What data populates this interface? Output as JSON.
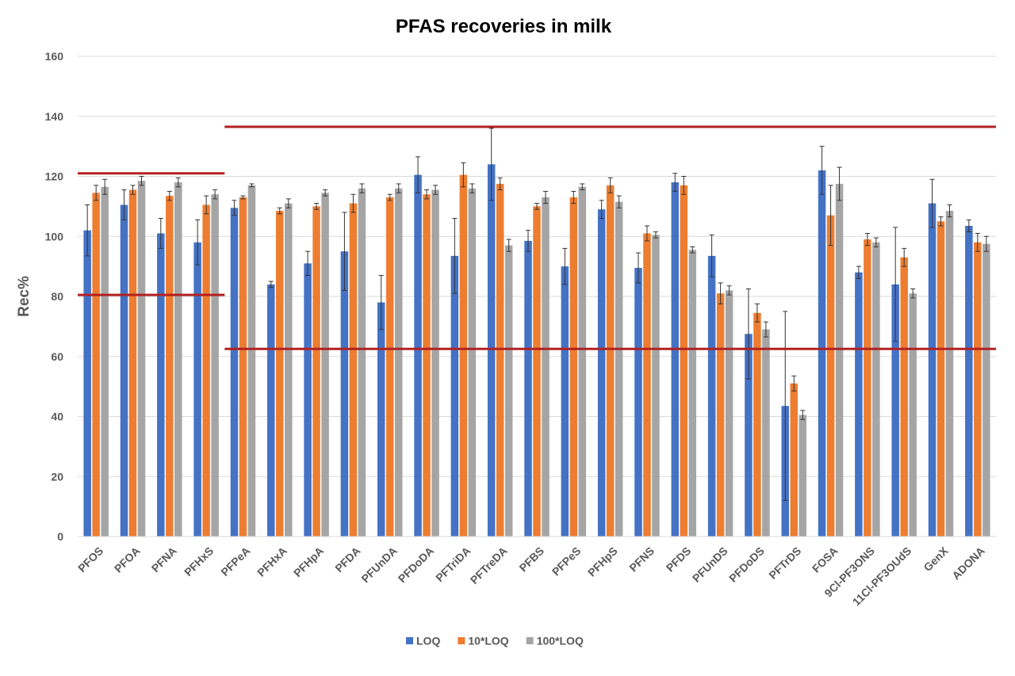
{
  "chart_data": {
    "type": "bar",
    "title": "PFAS recoveries in milk",
    "xlabel": "",
    "ylabel": "Rec%",
    "ylim": [
      0,
      160
    ],
    "yticks": [
      0,
      20,
      40,
      60,
      80,
      100,
      120,
      140,
      160
    ],
    "grid": true,
    "legend_position": "bottom",
    "categories": [
      "PFOS",
      "PFOA",
      "PFNA",
      "PFHxS",
      "PFPeA",
      "PFHxA",
      "PFHpA",
      "PFDA",
      "PFUnDA",
      "PFDoDA",
      "PFTriDA",
      "PFTreDA",
      "PFBS",
      "PFPeS",
      "PFHpS",
      "PFNS",
      "PFDS",
      "PFUnDS",
      "PFDoDS",
      "PFTrDS",
      "FOSA",
      "9Cl-PF3ONS",
      "11Cl-PF3OUdS",
      "GenX",
      "ADONA"
    ],
    "series": [
      {
        "name": "LOQ",
        "color": "#4472C4",
        "values": [
          102,
          110.5,
          101,
          98,
          109.5,
          84,
          91,
          95,
          78,
          120.5,
          93.5,
          124,
          98.5,
          90,
          109,
          89.5,
          118,
          93.5,
          67.5,
          43.5,
          122,
          88,
          84,
          111,
          103.5
        ],
        "errors": [
          8.5,
          5,
          5,
          7.5,
          2.5,
          1,
          4,
          13,
          9,
          6,
          12.5,
          12,
          3.5,
          6,
          3,
          5,
          3,
          7,
          15,
          31.5,
          8,
          2,
          19,
          8,
          2
        ]
      },
      {
        "name": "10*LOQ",
        "color": "#ED7D31",
        "values": [
          114.5,
          115.5,
          113.5,
          110.5,
          113,
          108.5,
          110,
          111,
          113,
          114,
          120.5,
          117.5,
          110,
          113,
          117,
          101,
          117,
          81,
          74.5,
          51,
          107,
          99,
          93,
          105,
          98
        ],
        "errors": [
          2.5,
          1.5,
          1.5,
          3,
          0.5,
          1,
          1,
          3,
          1,
          1.5,
          4,
          2,
          1,
          2,
          2.5,
          2.5,
          3,
          3.5,
          3,
          2.5,
          10,
          2,
          3,
          1.5,
          3
        ]
      },
      {
        "name": "100*LOQ",
        "color": "#A5A5A5",
        "values": [
          116.5,
          118.5,
          118,
          114,
          117,
          111,
          114.5,
          116,
          116,
          115.5,
          116,
          97,
          113,
          116.5,
          111.5,
          100.5,
          95.5,
          82,
          69,
          40.5,
          117.5,
          98,
          81,
          108.5,
          97.5
        ],
        "errors": [
          2.5,
          1.5,
          1.5,
          1.5,
          0.5,
          1.5,
          1,
          1.5,
          1.5,
          1.5,
          1.5,
          2,
          2,
          1,
          2,
          1,
          1,
          1.5,
          2.5,
          1.5,
          5.5,
          1.5,
          1.5,
          2,
          2.5
        ]
      }
    ],
    "reference_lines": [
      {
        "y": 121,
        "from": "PFOS",
        "to": "PFHxS"
      },
      {
        "y": 80.5,
        "from": "PFOS",
        "to": "PFHxS"
      },
      {
        "y": 136.5,
        "from": "PFPeA",
        "to": "ADONA"
      },
      {
        "y": 62.5,
        "from": "PFPeA",
        "to": "ADONA"
      }
    ],
    "reference_line_color": "#B22222"
  }
}
